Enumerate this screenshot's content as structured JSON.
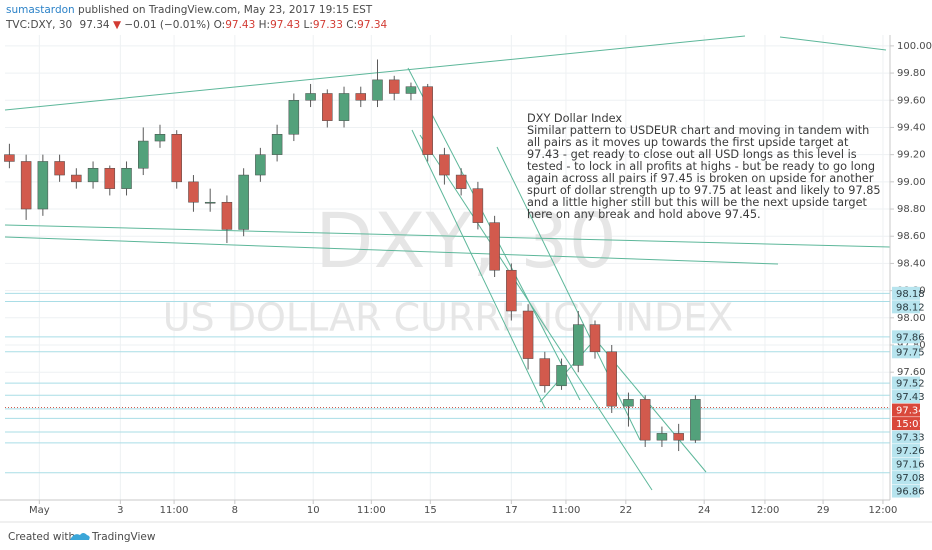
{
  "header": {
    "author": "sumastardon",
    "published": "published on TradingView.com, May 23, 2017 19:15 EST",
    "symbol": "TVC:DXY, 30",
    "price": "97.34",
    "arrow": "▼",
    "change": "−0.01 (−0.01%)",
    "ohlc": [
      {
        "key": "O:",
        "value": "97.43"
      },
      {
        "key": "H:",
        "value": "97.43"
      },
      {
        "key": "L:",
        "value": "97.33"
      },
      {
        "key": "C:",
        "value": "97.34"
      }
    ]
  },
  "chart_data": {
    "type": "candlestick",
    "watermark": [
      "DXY, 30",
      "US DOLLAR CURRENCY INDEX"
    ],
    "annotation": [
      "DXY Dollar Index",
      "Similar pattern to USDEUR chart and moving in tandem with",
      "all pairs as it moves up towards the first upside target at",
      "97.43 - get ready to close out all USD longs as this level is",
      "tested - to lock in all profits at highs - but be ready to go long",
      "again across all pairs if 97.45 is broken on upside for another",
      "spurt of dollar strength up to 97.75 at least and likely to 97.85",
      "and a little higher still but this will be the next upside target",
      "here on any break and hold above 97.45."
    ],
    "up_color": "#53a17b",
    "down_color": "#d25a4d",
    "x": [
      0,
      1.9,
      3.8,
      5.7,
      7.6,
      9.5,
      11.4,
      13.3,
      15.2,
      17.1,
      19,
      20.9,
      22.8,
      24.7,
      26.6,
      28.5,
      30.4,
      32.3,
      34.2,
      36.1,
      38,
      39.9,
      41.8,
      43.7,
      45.6,
      47.5,
      49.4,
      51.3,
      53.2,
      55.1,
      57,
      58.9,
      60.8,
      62.7,
      64.6,
      66.5,
      68.4,
      70.3,
      72.2,
      74.1,
      76,
      77.9
    ],
    "open": [
      99.2,
      99.15,
      98.8,
      99.15,
      99.05,
      99.0,
      99.1,
      98.95,
      99.1,
      99.3,
      99.35,
      99.0,
      98.85,
      98.85,
      98.65,
      99.05,
      99.2,
      99.35,
      99.6,
      99.65,
      99.45,
      99.65,
      99.6,
      99.75,
      99.65,
      99.7,
      99.2,
      99.05,
      98.95,
      98.7,
      98.35,
      98.05,
      97.7,
      97.5,
      97.65,
      97.95,
      97.75,
      97.35,
      97.4,
      97.1,
      97.15,
      97.1
    ],
    "high": [
      99.28,
      99.2,
      99.2,
      99.2,
      99.1,
      99.15,
      99.12,
      99.15,
      99.4,
      99.42,
      99.38,
      99.05,
      98.95,
      98.9,
      99.1,
      99.25,
      99.42,
      99.65,
      99.72,
      99.68,
      99.7,
      99.7,
      99.9,
      99.78,
      99.73,
      99.72,
      99.25,
      99.1,
      99.0,
      98.75,
      98.4,
      98.1,
      97.75,
      97.7,
      98.05,
      97.98,
      97.8,
      97.45,
      97.43,
      97.2,
      97.22,
      97.43
    ],
    "low": [
      99.1,
      98.72,
      98.75,
      99.0,
      98.95,
      98.95,
      98.9,
      98.9,
      99.05,
      99.25,
      98.95,
      98.78,
      98.78,
      98.55,
      98.6,
      99.0,
      99.15,
      99.3,
      99.55,
      99.4,
      99.4,
      99.55,
      99.55,
      99.6,
      99.6,
      99.15,
      98.98,
      98.9,
      98.65,
      98.3,
      97.98,
      97.62,
      97.45,
      97.47,
      97.6,
      97.7,
      97.3,
      97.2,
      97.05,
      97.05,
      97.02,
      97.08
    ],
    "close": [
      99.15,
      98.8,
      99.15,
      99.05,
      99.0,
      99.1,
      98.95,
      99.1,
      99.3,
      99.35,
      99.0,
      98.85,
      98.85,
      98.65,
      99.05,
      99.2,
      99.35,
      99.6,
      99.65,
      99.45,
      99.65,
      99.6,
      99.75,
      99.65,
      99.7,
      99.2,
      99.05,
      98.95,
      98.7,
      98.35,
      98.05,
      97.7,
      97.5,
      97.65,
      97.95,
      97.75,
      97.35,
      97.4,
      97.1,
      97.15,
      97.1,
      97.4
    ],
    "xlim": [
      -0.5,
      100
    ],
    "xticks": [
      {
        "value": 3.4,
        "label": "May"
      },
      {
        "value": 12.6,
        "label": "3"
      },
      {
        "value": 18.7,
        "label": "11:00"
      },
      {
        "value": 25.6,
        "label": "8"
      },
      {
        "value": 34.5,
        "label": "10"
      },
      {
        "value": 41.1,
        "label": "11:00"
      },
      {
        "value": 47.8,
        "label": "15"
      },
      {
        "value": 57.0,
        "label": "17"
      },
      {
        "value": 63.2,
        "label": "11:00"
      },
      {
        "value": 70.0,
        "label": "22"
      },
      {
        "value": 78.9,
        "label": "24"
      },
      {
        "value": 85.8,
        "label": "12:00"
      },
      {
        "value": 92.4,
        "label": "29"
      },
      {
        "value": 99.2,
        "label": "12:00"
      }
    ],
    "ylim": [
      96.66,
      100.08
    ],
    "yticks": [
      {
        "value": 97.6,
        "label": "97.60"
      },
      {
        "value": 97.8,
        "label": "97.80"
      },
      {
        "value": 98.0,
        "label": "98.00"
      },
      {
        "value": 98.2,
        "label": "98.20"
      },
      {
        "value": 98.4,
        "label": "98.40"
      },
      {
        "value": 98.6,
        "label": "98.60"
      },
      {
        "value": 98.8,
        "label": "98.80"
      },
      {
        "value": 99.0,
        "label": "99.00"
      },
      {
        "value": 99.2,
        "label": "99.20"
      },
      {
        "value": 99.4,
        "label": "99.40"
      },
      {
        "value": 99.6,
        "label": "99.60"
      },
      {
        "value": 99.8,
        "label": "99.80"
      },
      {
        "value": 100,
        "label": "100.00"
      }
    ],
    "grid": true,
    "levels": [
      98.18,
      98.12,
      97.86,
      97.75,
      97.52,
      97.43,
      97.33,
      97.26,
      97.16,
      97.08,
      96.86
    ],
    "last_price": 97.34,
    "countdown": "15:01"
  },
  "footer": {
    "created": "Created with",
    "brand": "TradingView"
  }
}
